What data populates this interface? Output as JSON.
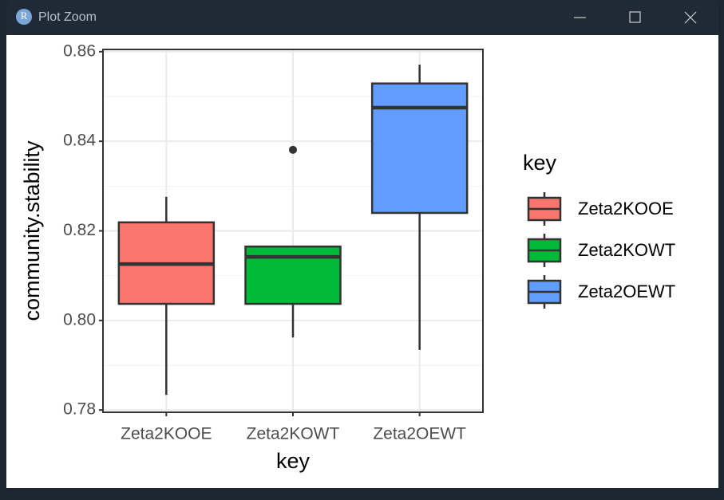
{
  "window": {
    "title": "Plot Zoom",
    "icon_label": "R"
  },
  "chart_data": {
    "type": "box",
    "x_label": "key",
    "y_label": "community.stability",
    "legend_title": "key",
    "categories": [
      "Zeta2KOOE",
      "Zeta2KOWT",
      "Zeta2OEWT"
    ],
    "colors": [
      "#F8766D",
      "#00BA38",
      "#619CFF"
    ],
    "boxes": [
      {
        "min": 0.7834,
        "q1": 0.8037,
        "median": 0.8126,
        "q3": 0.8219,
        "max": 0.8276,
        "outliers": []
      },
      {
        "min": 0.7962,
        "q1": 0.8037,
        "median": 0.8142,
        "q3": 0.8165,
        "max": 0.8165,
        "outliers": [
          0.8381
        ]
      },
      {
        "min": 0.7934,
        "q1": 0.824,
        "median": 0.8475,
        "q3": 0.8529,
        "max": 0.8571,
        "outliers": []
      }
    ],
    "ylim": [
      0.7795,
      0.8605
    ],
    "yticks": [
      {
        "value": 0.78,
        "label": "0.78"
      },
      {
        "value": 0.8,
        "label": "0.80"
      },
      {
        "value": 0.82,
        "label": "0.82"
      },
      {
        "value": 0.84,
        "label": "0.84"
      },
      {
        "value": 0.86,
        "label": "0.86"
      }
    ],
    "yminor": [
      0.79,
      0.81,
      0.83,
      0.85
    ],
    "grid": true
  }
}
